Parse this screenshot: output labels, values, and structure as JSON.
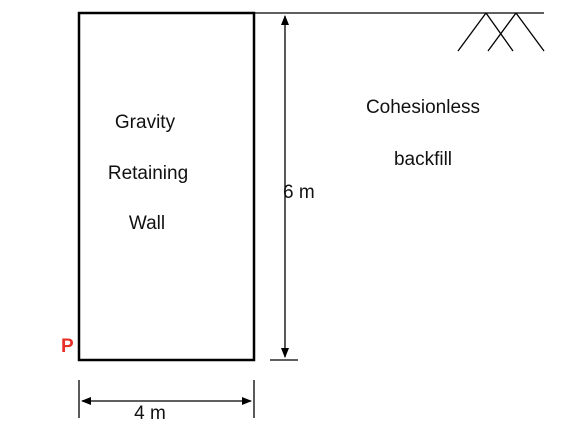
{
  "wall": {
    "label_line1": "Gravity",
    "label_line2": "Retaining",
    "label_line3": "Wall"
  },
  "backfill": {
    "label_line1": "Cohesionless",
    "label_line2": "backfill"
  },
  "dimensions": {
    "height_label": "6 m",
    "width_label": "4 m"
  },
  "point": {
    "label": "P",
    "color": "#e8302a"
  },
  "colors": {
    "line": "#000000",
    "text": "#111111"
  }
}
